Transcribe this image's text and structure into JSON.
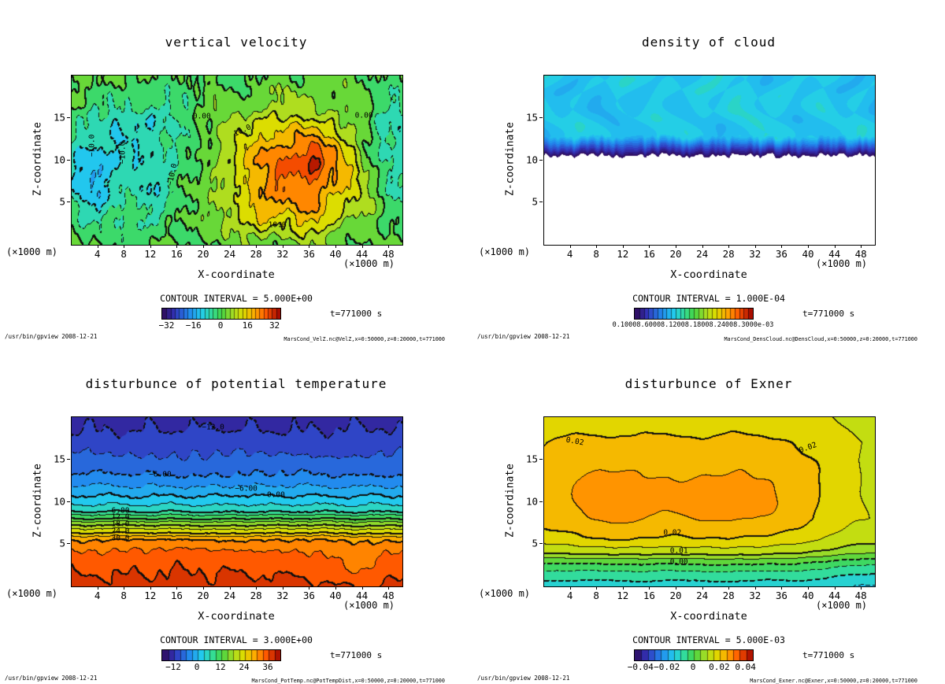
{
  "page": {
    "background": "#ffffff"
  },
  "colormap": [
    [
      0.0,
      "#2e0854"
    ],
    [
      0.1,
      "#3333bb"
    ],
    [
      0.22,
      "#2288ee"
    ],
    [
      0.33,
      "#22ccee"
    ],
    [
      0.42,
      "#33dd99"
    ],
    [
      0.5,
      "#44d544"
    ],
    [
      0.6,
      "#aadd22"
    ],
    [
      0.68,
      "#dddd00"
    ],
    [
      0.78,
      "#ffaa00"
    ],
    [
      0.88,
      "#ff5500"
    ],
    [
      1.0,
      "#990000"
    ]
  ],
  "panels": [
    {
      "title": "vertical velocity",
      "xlabel": "X-coordinate",
      "ylabel": "Z-coordinate",
      "y_unit": "(×1000 m)",
      "x_unit_right": "(×1000 m)",
      "contour_interval_label": "CONTOUR INTERVAL =  5.000E+00",
      "time_label": "t=771000 s",
      "credit": "/usr/bin/gpview  2008-12-21",
      "file_label": "MarsCond_VelZ.nc@VelZ,x=0:50000,z=0:20000,t=771000",
      "colorbar_tick_labels": [
        "−32",
        "−16",
        "0",
        "16",
        "32"
      ],
      "contour_labels": [
        {
          "text": "−10.0",
          "x": 3.2,
          "z": 11.6,
          "rot": -90
        },
        {
          "text": "−10.0",
          "x": 7.8,
          "z": 10.8,
          "rot": -90
        },
        {
          "text": "−10.0",
          "x": 15.3,
          "z": 8.2,
          "rot": -78
        },
        {
          "text": "0.00",
          "x": 19.8,
          "z": 15.1,
          "rot": 0
        },
        {
          "text": "10.0",
          "x": 26.0,
          "z": 13.4,
          "rot": -25
        },
        {
          "text": "0.00",
          "x": 44.3,
          "z": 15.2,
          "rot": 0
        },
        {
          "text": "10.0",
          "x": 31.2,
          "z": 2.2,
          "rot": 0
        }
      ]
    },
    {
      "title": "density of cloud",
      "xlabel": "X-coordinate",
      "ylabel": "Z-coordinate",
      "y_unit": "(×1000 m)",
      "x_unit_right": "(×1000 m)",
      "contour_interval_label": "CONTOUR INTERVAL =  1.000E-04",
      "time_label": "t=771000 s",
      "credit": "/usr/bin/gpview  2008-12-21",
      "file_label": "MarsCond_DensCloud.nc@DensCloud,x=0:50000,z=0:20000,t=771000",
      "colorbar_overlap_label": "0.10008.60008.12008.18008.24008.3000e-03",
      "contour_labels": []
    },
    {
      "title": "disturbunce of potential temperature",
      "xlabel": "X-coordinate",
      "ylabel": "Z-coordinate",
      "y_unit": "(×1000 m)",
      "x_unit_right": "(×1000 m)",
      "contour_interval_label": "CONTOUR INTERVAL =  3.000E+00",
      "time_label": "t=771000 s",
      "credit": "/usr/bin/gpview  2008-12-21",
      "file_label": "MarsCond_PotTemp.nc@PotTempDist,x=0:50000,z=0:20000,t=771000",
      "colorbar_tick_labels": [
        "−12",
        "0",
        "12",
        "24",
        "36"
      ],
      "contour_labels": [
        {
          "text": "−12.0",
          "x": 21.5,
          "z": 18.7,
          "rot": 0
        },
        {
          "text": "−6.00",
          "x": 13.5,
          "z": 13.1,
          "rot": 0
        },
        {
          "text": "−6.00",
          "x": 26.5,
          "z": 11.4,
          "rot": 0
        },
        {
          "text": "0.00",
          "x": 31.0,
          "z": 10.7,
          "rot": 0
        },
        {
          "text": "6.00",
          "x": 7.5,
          "z": 8.85,
          "rot": 0
        },
        {
          "text": "12.0",
          "x": 7.5,
          "z": 8.05,
          "rot": 0
        },
        {
          "text": "18.0",
          "x": 7.5,
          "z": 7.25,
          "rot": 0
        },
        {
          "text": "24.0",
          "x": 7.5,
          "z": 6.4,
          "rot": 0
        },
        {
          "text": "30.0",
          "x": 7.5,
          "z": 5.55,
          "rot": 0
        }
      ]
    },
    {
      "title": "disturbunce of Exner",
      "xlabel": "X-coordinate",
      "ylabel": "Z-coordinate",
      "y_unit": "(×1000 m)",
      "x_unit_right": "(×1000 m)",
      "contour_interval_label": "CONTOUR INTERVAL =  5.000E-03",
      "time_label": "t=771000 s",
      "credit": "/usr/bin/gpview  2008-12-21",
      "file_label": "MarsCond_Exner.nc@Exner,x=0:50000,z=0:20000,t=771000",
      "colorbar_tick_labels": [
        "−0.04",
        "−0.02",
        "0",
        "0.02",
        "0.04"
      ],
      "contour_labels": [
        {
          "text": "0.02",
          "x": 4.8,
          "z": 17.0,
          "rot": 10
        },
        {
          "text": "0.02",
          "x": 40.0,
          "z": 16.3,
          "rot": -20
        },
        {
          "text": "0.02",
          "x": 19.5,
          "z": 6.2,
          "rot": 0
        },
        {
          "text": "0.01",
          "x": 20.5,
          "z": 4.1,
          "rot": 0
        },
        {
          "text": "0.00",
          "x": 20.5,
          "z": 2.8,
          "rot": 0
        }
      ]
    }
  ],
  "chart_data": [
    {
      "type": "filled_contour",
      "title": "vertical velocity",
      "xlabel": "X-coordinate (×1000 m)",
      "ylabel": "Z-coordinate (×1000 m)",
      "x_range": [
        0,
        50
      ],
      "z_range": [
        0,
        20
      ],
      "x_ticks": [
        4,
        8,
        12,
        16,
        20,
        24,
        28,
        32,
        36,
        40,
        44,
        48
      ],
      "z_ticks": [
        5,
        10,
        15
      ],
      "contour_interval": 5.0,
      "fill_interval": 5.0,
      "value_range": [
        -35,
        35
      ],
      "colorbar_ticks": [
        -32,
        -16,
        0,
        16,
        32
      ],
      "cbar_segments": 28,
      "time": "t=771000 s",
      "model": {
        "blobs": [
          [
            26,
            34,
            9,
            110,
            40
          ],
          [
            7,
            36.5,
            10.5,
            2.5,
            7
          ],
          [
            9,
            28.5,
            4,
            8,
            6
          ],
          [
            8,
            37,
            3.5,
            12,
            5
          ],
          [
            -16,
            3.5,
            8.5,
            20,
            25
          ],
          [
            -8,
            12,
            6,
            12,
            20
          ],
          [
            -5,
            15,
            12,
            40,
            25
          ],
          [
            -6,
            10,
            15,
            25,
            12
          ],
          [
            -11,
            49,
            11,
            25,
            45
          ]
        ],
        "noises": [
          [
            3.0,
            0.55,
            0.6
          ],
          [
            1.8,
            2.2,
            0.25
          ]
        ],
        "dash_below": 0,
        "thick_every": 10
      }
    },
    {
      "type": "filled_contour",
      "title": "density of cloud",
      "xlabel": "X-coordinate (×1000 m)",
      "ylabel": "Z-coordinate (×1000 m)",
      "x_range": [
        0,
        50
      ],
      "z_range": [
        0,
        20
      ],
      "x_ticks": [
        4,
        8,
        12,
        16,
        20,
        24,
        28,
        32,
        36,
        40,
        44,
        48
      ],
      "z_ticks": [
        5,
        10,
        15
      ],
      "contour_interval": 0.0001,
      "fill_interval": 1.3e-05,
      "value_range": [
        0,
        0.0004
      ],
      "colorbar_ticks": [],
      "cbar_segments": 26,
      "time": "t=771000 s",
      "model": {
        "type": "cloud",
        "base": 10.55,
        "base_noise": [
          0.3,
          0.9,
          1.7
        ],
        "ramp": 0.45,
        "peak": 0.00013,
        "tex_noise": [
          0.12,
          0.45,
          0.5
        ],
        "white_below": true,
        "lines": false
      }
    },
    {
      "type": "filled_contour",
      "title": "disturbunce of potential temperature",
      "xlabel": "X-coordinate (×1000 m)",
      "ylabel": "Z-coordinate (×1000 m)",
      "x_range": [
        0,
        50
      ],
      "z_range": [
        0,
        20
      ],
      "x_ticks": [
        4,
        8,
        12,
        16,
        20,
        24,
        28,
        32,
        36,
        40,
        44,
        48
      ],
      "z_ticks": [
        5,
        10,
        15
      ],
      "contour_interval": 3.0,
      "fill_interval": 3.0,
      "value_range": [
        -18,
        42
      ],
      "colorbar_ticks": [
        -12,
        0,
        12,
        24,
        36
      ],
      "cbar_segments": 20,
      "time": "t=771000 s",
      "model": {
        "profile": [
          [
            0,
            37
          ],
          [
            3,
            35
          ],
          [
            4.3,
            33
          ],
          [
            5.5,
            30
          ],
          [
            6.3,
            24
          ],
          [
            7.2,
            18
          ],
          [
            8.0,
            12
          ],
          [
            8.8,
            6
          ],
          [
            9.6,
            3
          ],
          [
            10.7,
            0
          ],
          [
            11.8,
            -3
          ],
          [
            13.2,
            -6
          ],
          [
            15.5,
            -9
          ],
          [
            18.5,
            -12
          ],
          [
            20,
            -12.8
          ]
        ],
        "blobs": [
          [
            -3,
            43,
            2.5,
            30,
            6
          ]
        ],
        "noises": [
          [
            0.7,
            0.8,
            0.35
          ],
          [
            0.35,
            2.0,
            0.2
          ]
        ],
        "dash_below": 0,
        "thick_every": 6
      }
    },
    {
      "type": "filled_contour",
      "title": "disturbunce of Exner",
      "xlabel": "X-coordinate (×1000 m)",
      "ylabel": "Z-coordinate (×1000 m)",
      "x_range": [
        0,
        50
      ],
      "z_range": [
        0,
        20
      ],
      "x_ticks": [
        4,
        8,
        12,
        16,
        20,
        24,
        28,
        32,
        36,
        40,
        44,
        48
      ],
      "z_ticks": [
        5,
        10,
        15
      ],
      "contour_interval": 0.005,
      "fill_interval": 0.005,
      "value_range": [
        -0.045,
        0.045
      ],
      "colorbar_ticks": [
        -0.04,
        -0.02,
        0,
        0.02,
        0.04
      ],
      "cbar_segments": 18,
      "time": "t=771000 s",
      "model": {
        "profile": [
          [
            0,
            -0.013
          ],
          [
            1.5,
            -0.007
          ],
          [
            2.8,
            0
          ],
          [
            4,
            0.01
          ],
          [
            5.5,
            0.016
          ],
          [
            8,
            0.0195
          ],
          [
            12,
            0.0205
          ],
          [
            17,
            0.02
          ],
          [
            20,
            0.017
          ]
        ],
        "blobs": [
          [
            0.007,
            10,
            10,
            90,
            30
          ],
          [
            0.007,
            29,
            10,
            110,
            30
          ],
          [
            -0.006,
            50,
            13,
            60,
            80
          ],
          [
            -0.002,
            50,
            3,
            40,
            30
          ]
        ],
        "noises": [
          [
            0.0006,
            0.5,
            0.4
          ]
        ],
        "dash_below": 1e-09,
        "thick_every": 0.01
      }
    }
  ]
}
